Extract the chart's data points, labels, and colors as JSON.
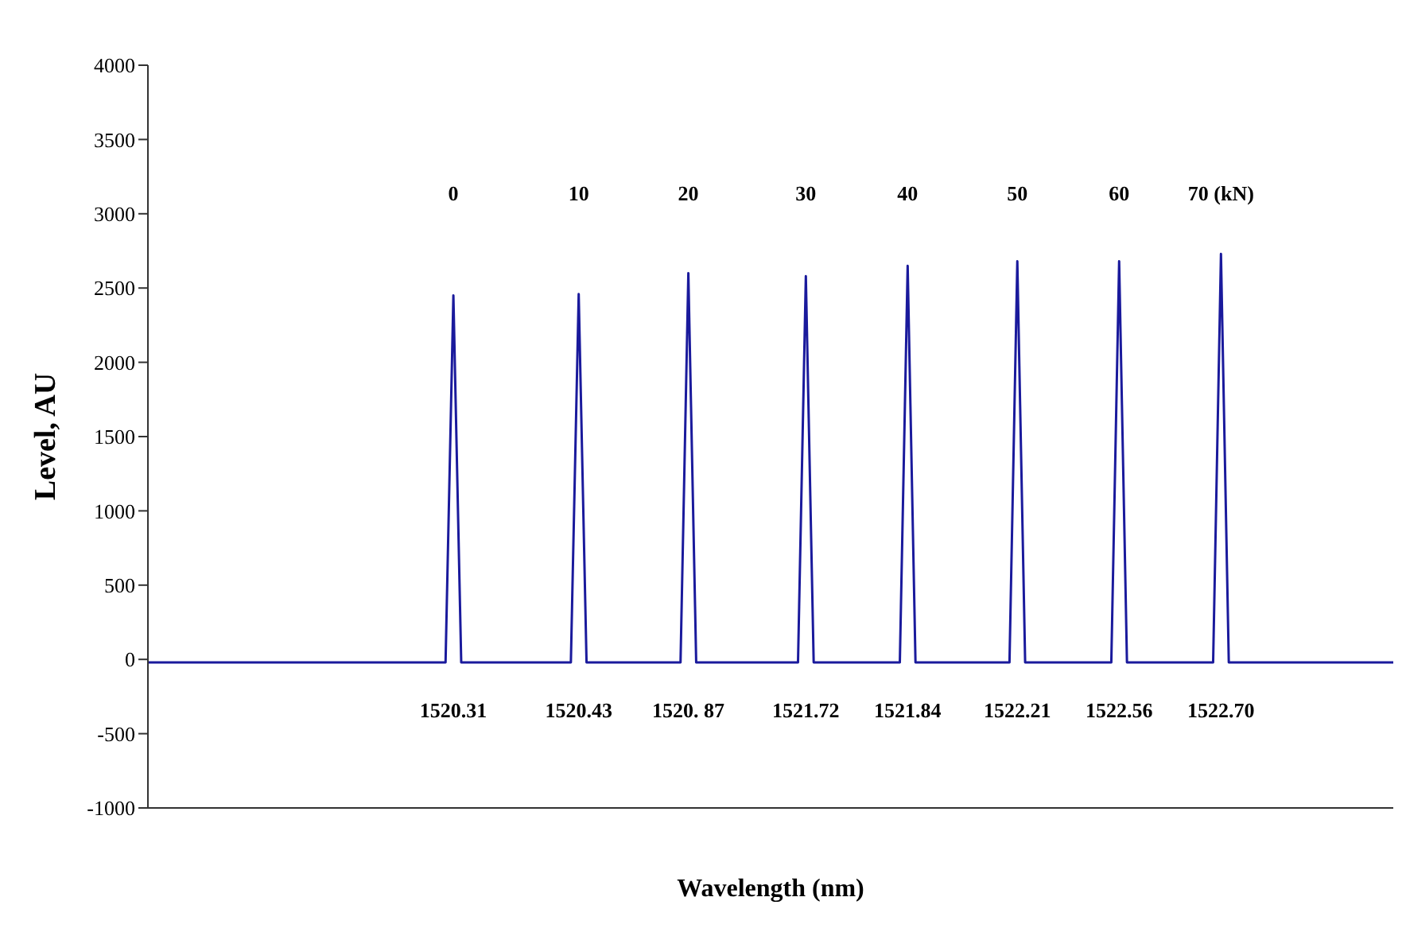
{
  "chart_data": {
    "type": "line",
    "xlabel": "Wavelength (nm)",
    "ylabel": "Level, AU",
    "categories": [
      null,
      null,
      null,
      null,
      null,
      null,
      null,
      null,
      null,
      null,
      null,
      null,
      null,
      null,
      null,
      null,
      null,
      null,
      null,
      null,
      null,
      null,
      null,
      null,
      null,
      null,
      null,
      null,
      null,
      null,
      null,
      null,
      null,
      null,
      null,
      null,
      null,
      null,
      null,
      null,
      null,
      null,
      null,
      null,
      null,
      null,
      null,
      null,
      null,
      null,
      null,
      null,
      null,
      null,
      null,
      null,
      null,
      null,
      null,
      null,
      null,
      null,
      null,
      null,
      null,
      null,
      null,
      null,
      null,
      null,
      null,
      null,
      null,
      null,
      null,
      null,
      null,
      null,
      null,
      null,
      null,
      null,
      null,
      null,
      null,
      null,
      null,
      null,
      null,
      null,
      null,
      null,
      null,
      null,
      null,
      null,
      null,
      null,
      null,
      null,
      null,
      null,
      null,
      null,
      null,
      null,
      null,
      null,
      null,
      null,
      null,
      null,
      null,
      null,
      null,
      null,
      null,
      null,
      null,
      null,
      null,
      null,
      null,
      null,
      null,
      null,
      null,
      null,
      null,
      null,
      null,
      null,
      null,
      null,
      null,
      null,
      null,
      null,
      null,
      null,
      null,
      null,
      null,
      null,
      null,
      null,
      null,
      null,
      null,
      null,
      null,
      null,
      null,
      null,
      null,
      null,
      null,
      null,
      null,
      null
    ],
    "series": [
      {
        "color": "#1a1a9c",
        "values": [
          -20,
          -20,
          -20,
          -20,
          -20,
          -20,
          -20,
          -20,
          -20,
          -20,
          -20,
          -20,
          -20,
          -20,
          -20,
          -20,
          -20,
          -20,
          -20,
          -20,
          -20,
          -20,
          -20,
          -20,
          -20,
          -20,
          -20,
          -20,
          -20,
          -20,
          -20,
          -20,
          -20,
          -20,
          -20,
          -20,
          -20,
          -20,
          -20,
          2450,
          -20,
          -20,
          -20,
          -20,
          -20,
          -20,
          -20,
          -20,
          -20,
          -20,
          -20,
          -20,
          -20,
          -20,
          -20,
          2460,
          -20,
          -20,
          -20,
          -20,
          -20,
          -20,
          -20,
          -20,
          -20,
          -20,
          -20,
          -20,
          -20,
          2600,
          -20,
          -20,
          -20,
          -20,
          -20,
          -20,
          -20,
          -20,
          -20,
          -20,
          -20,
          -20,
          -20,
          -20,
          2580,
          -20,
          -20,
          -20,
          -20,
          -20,
          -20,
          -20,
          -20,
          -20,
          -20,
          -20,
          -20,
          2650,
          -20,
          -20,
          -20,
          -20,
          -20,
          -20,
          -20,
          -20,
          -20,
          -20,
          -20,
          -20,
          -20,
          2680,
          -20,
          -20,
          -20,
          -20,
          -20,
          -20,
          -20,
          -20,
          -20,
          -20,
          -20,
          -20,
          2680,
          -20,
          -20,
          -20,
          -20,
          -20,
          -20,
          -20,
          -20,
          -20,
          -20,
          -20,
          -20,
          2730,
          -20,
          -20,
          -20,
          -20,
          -20,
          -20,
          -20,
          -20,
          -20,
          -20,
          -20,
          -20,
          -20,
          -20,
          -20,
          -20,
          -20,
          -20,
          -20,
          -20,
          -20,
          -20
        ]
      }
    ],
    "ylim": [
      -1000,
      4000
    ],
    "yticks": [
      -1000,
      -500,
      0,
      500,
      1000,
      1500,
      2000,
      2500,
      3000,
      3500,
      4000
    ],
    "grid": false,
    "tick_labels": "y",
    "marker": "none",
    "annotations": [
      "0",
      "10",
      "20",
      "30",
      "40",
      "50",
      "60",
      "70 (kN)",
      "1520.31",
      "1520.43",
      "1520. 87",
      "1521.72",
      "1521.84",
      "1522.21",
      "1522.56",
      "1522.70"
    ]
  }
}
